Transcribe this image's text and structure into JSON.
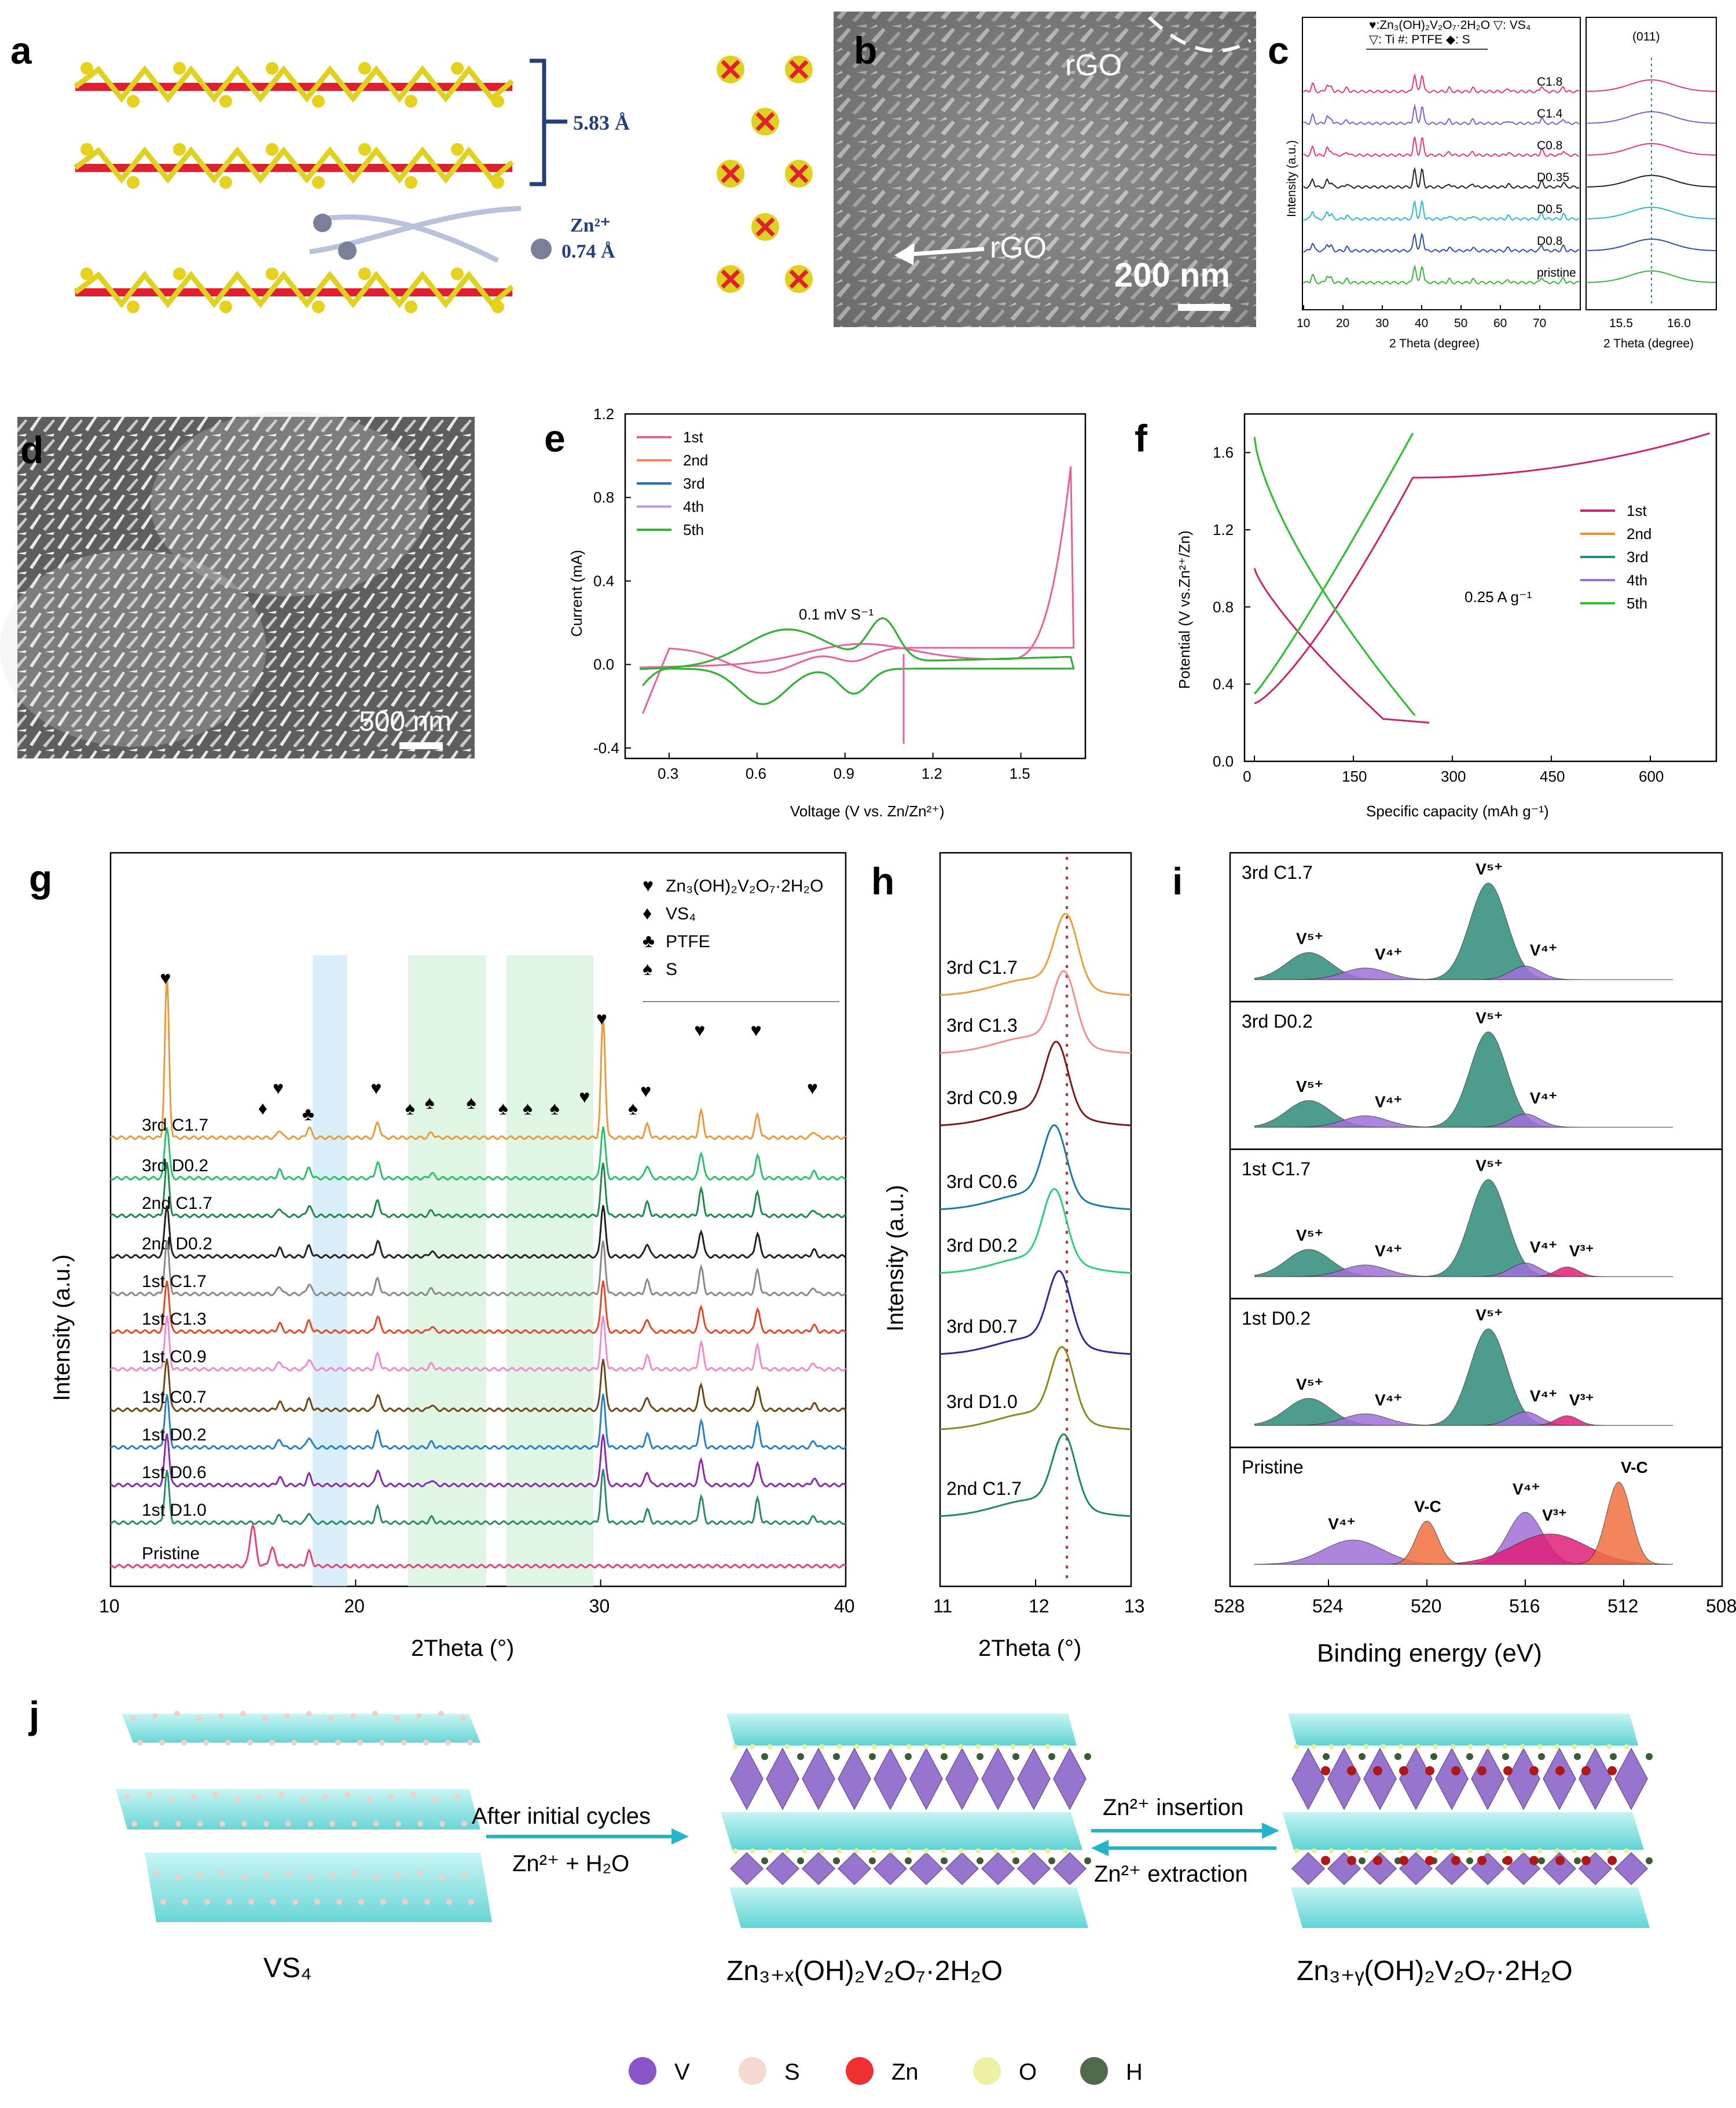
{
  "panel_labels": {
    "a": "a",
    "b": "b",
    "c": "c",
    "d": "d",
    "e": "e",
    "f": "f",
    "g": "g",
    "h": "h",
    "i": "i",
    "j": "j"
  },
  "panel_a": {
    "spacing": "5.83 Å",
    "ion": "Zn²⁺",
    "ion_radius": "0.74 Å"
  },
  "panel_b": {
    "rgo_top": "rGO",
    "rgo_arrow": "rGO",
    "scale": "200 nm"
  },
  "panel_c": {
    "ylabel": "Intensity (a.u.)",
    "xlabel": "2 Theta (degree)",
    "inset_xlabel": "2 Theta (degree)",
    "inset_title": "(011)",
    "xticks": [
      "10",
      "20",
      "30",
      "40",
      "50",
      "60",
      "70"
    ],
    "inset_ticks": [
      "15.5",
      "16.0"
    ],
    "legend_lines": [
      "♥:Zn₃(OH)₂V₂O₇·2H₂O   ▽: VS₄",
      "▽: Ti     #: PTFE    ◆: S"
    ],
    "traces": [
      {
        "label": "C1.8",
        "color": "#e8358a"
      },
      {
        "label": "C1.4",
        "color": "#8a5cc4"
      },
      {
        "label": "C0.8",
        "color": "#e8358a"
      },
      {
        "label": "D0.35",
        "color": "#222222"
      },
      {
        "label": "D0.5",
        "color": "#2cb7c9"
      },
      {
        "label": "D0.8",
        "color": "#2a4ea8"
      },
      {
        "label": "pristine",
        "color": "#3cb43c"
      }
    ]
  },
  "panel_d": {
    "scale": "500 nm"
  },
  "chart_data": [
    {
      "panel": "e",
      "type": "line",
      "title": "",
      "annotation": "0.1 mV S⁻¹",
      "xlabel": "Voltage (V vs. Zn/Zn²⁺)",
      "ylabel": "Current (mA)",
      "xlim": [
        0.15,
        1.72
      ],
      "ylim": [
        -0.45,
        1.2
      ],
      "xticks": [
        "0.3",
        "0.6",
        "0.9",
        "1.2",
        "1.5"
      ],
      "yticks": [
        "-0.4",
        "0.0",
        "0.4",
        "0.8",
        "1.2"
      ],
      "series": [
        {
          "name": "1st",
          "color": "#e8609c"
        },
        {
          "name": "2nd",
          "color": "#f08c5a"
        },
        {
          "name": "3rd",
          "color": "#1f6fb4"
        },
        {
          "name": "4th",
          "color": "#b99be0"
        },
        {
          "name": "5th",
          "color": "#2fb52f"
        }
      ]
    },
    {
      "panel": "f",
      "type": "line",
      "annotation": "0.25 A g⁻¹",
      "xlabel": "Specific capacity (mAh g⁻¹)",
      "ylabel": "Potential (V vs.Zn²⁺/Zn)",
      "xlim": [
        -15,
        700
      ],
      "ylim": [
        0.0,
        1.8
      ],
      "xticks": [
        "0",
        "150",
        "300",
        "450",
        "600"
      ],
      "yticks": [
        "0.0",
        "0.4",
        "0.8",
        "1.2",
        "1.6"
      ],
      "series": [
        {
          "name": "1st",
          "color": "#c8246e"
        },
        {
          "name": "2nd",
          "color": "#f08c2a"
        },
        {
          "name": "3rd",
          "color": "#1e8a8a"
        },
        {
          "name": "4th",
          "color": "#9b6fd4"
        },
        {
          "name": "5th",
          "color": "#2fc42f"
        }
      ]
    },
    {
      "panel": "g",
      "type": "line",
      "xlabel": "2Theta (°)",
      "ylabel": "Intensity (a.u.)",
      "xlim": [
        10,
        40
      ],
      "xticks": [
        "10",
        "20",
        "30",
        "40"
      ],
      "legend": [
        {
          "sym": "♥",
          "text": "Zn₃(OH)₂V₂O₇·2H₂O"
        },
        {
          "sym": "♦",
          "text": "VS₄"
        },
        {
          "sym": "♣",
          "text": "PTFE"
        },
        {
          "sym": "♠",
          "text": "S"
        }
      ],
      "series": [
        {
          "name": "3rd C1.7",
          "color": "#e89a3c"
        },
        {
          "name": "3rd D0.2",
          "color": "#2dbf6a"
        },
        {
          "name": "2nd C1.7",
          "color": "#1e8a4a"
        },
        {
          "name": "2nd D0.2",
          "color": "#222222"
        },
        {
          "name": "1st C1.7",
          "color": "#8a8a8a"
        },
        {
          "name": "1st C1.3",
          "color": "#e04a2a"
        },
        {
          "name": "1st C0.9",
          "color": "#f08ad0"
        },
        {
          "name": "1st C0.7",
          "color": "#6a4a1a"
        },
        {
          "name": "1st D0.2",
          "color": "#2a80c4"
        },
        {
          "name": "1st D0.6",
          "color": "#8a2ab0"
        },
        {
          "name": "1st D1.0",
          "color": "#2a8a6a"
        },
        {
          "name": "Pristine",
          "color": "#e8407a"
        }
      ]
    },
    {
      "panel": "h",
      "type": "line",
      "xlabel": "2Theta (°)",
      "ylabel": "Intensity (a.u.)",
      "xlim": [
        11,
        13
      ],
      "xticks": [
        "11",
        "12",
        "13"
      ],
      "series": [
        {
          "name": "3rd C1.7",
          "color": "#e8a03c"
        },
        {
          "name": "3rd C1.3",
          "color": "#f09090"
        },
        {
          "name": "3rd C0.9",
          "color": "#7a1a1a"
        },
        {
          "name": "3rd C0.6",
          "color": "#1e7a9a"
        },
        {
          "name": "3rd D0.2",
          "color": "#2ad07a"
        },
        {
          "name": "3rd D0.7",
          "color": "#2a2a9a"
        },
        {
          "name": "3rd D1.0",
          "color": "#8a8a1a"
        },
        {
          "name": "2nd C1.7",
          "color": "#1e8a5a"
        }
      ]
    },
    {
      "panel": "i",
      "type": "area",
      "xlabel": "Binding energy (eV)",
      "xlim": [
        528,
        508
      ],
      "xticks": [
        "528",
        "524",
        "520",
        "516",
        "512",
        "508"
      ],
      "subpanels": [
        {
          "name": "3rd C1.7",
          "peaks": [
            "V⁵⁺",
            "V⁴⁺",
            "V⁵⁺",
            "V⁴⁺"
          ]
        },
        {
          "name": "3rd D0.2",
          "peaks": [
            "V⁵⁺",
            "V⁴⁺",
            "V⁵⁺",
            "V⁴⁺"
          ]
        },
        {
          "name": "1st C1.7",
          "peaks": [
            "V⁵⁺",
            "V⁴⁺",
            "V⁵⁺",
            "V⁴⁺",
            "V³⁺"
          ]
        },
        {
          "name": "1st D0.2",
          "peaks": [
            "V⁵⁺",
            "V⁴⁺",
            "V⁵⁺",
            "V⁴⁺",
            "V³⁺"
          ]
        },
        {
          "name": "Pristine",
          "peaks": [
            "V⁴⁺",
            "V-C",
            "V⁴⁺",
            "V³⁺",
            "V-C"
          ]
        }
      ]
    }
  ],
  "panel_j": {
    "struct1": "VS₄",
    "struct2": "Zn₃₊ₓ(OH)₂V₂O₇·2H₂O",
    "struct3": "Zn₃₊ᵧ(OH)₂V₂O₇·2H₂O",
    "arrow1_top": "After initial cycles",
    "arrow1_bottom": "Zn²⁺ + H₂O",
    "arrow2_top": "Zn²⁺ insertion",
    "arrow2_bottom": "Zn²⁺ extraction",
    "legend": [
      {
        "label": "V",
        "color": "#8a55c8"
      },
      {
        "label": "S",
        "color": "#f6d8d0"
      },
      {
        "label": "Zn",
        "color": "#ee3030"
      },
      {
        "label": "O",
        "color": "#eef0a6"
      },
      {
        "label": "H",
        "color": "#4f6a4a"
      }
    ]
  }
}
